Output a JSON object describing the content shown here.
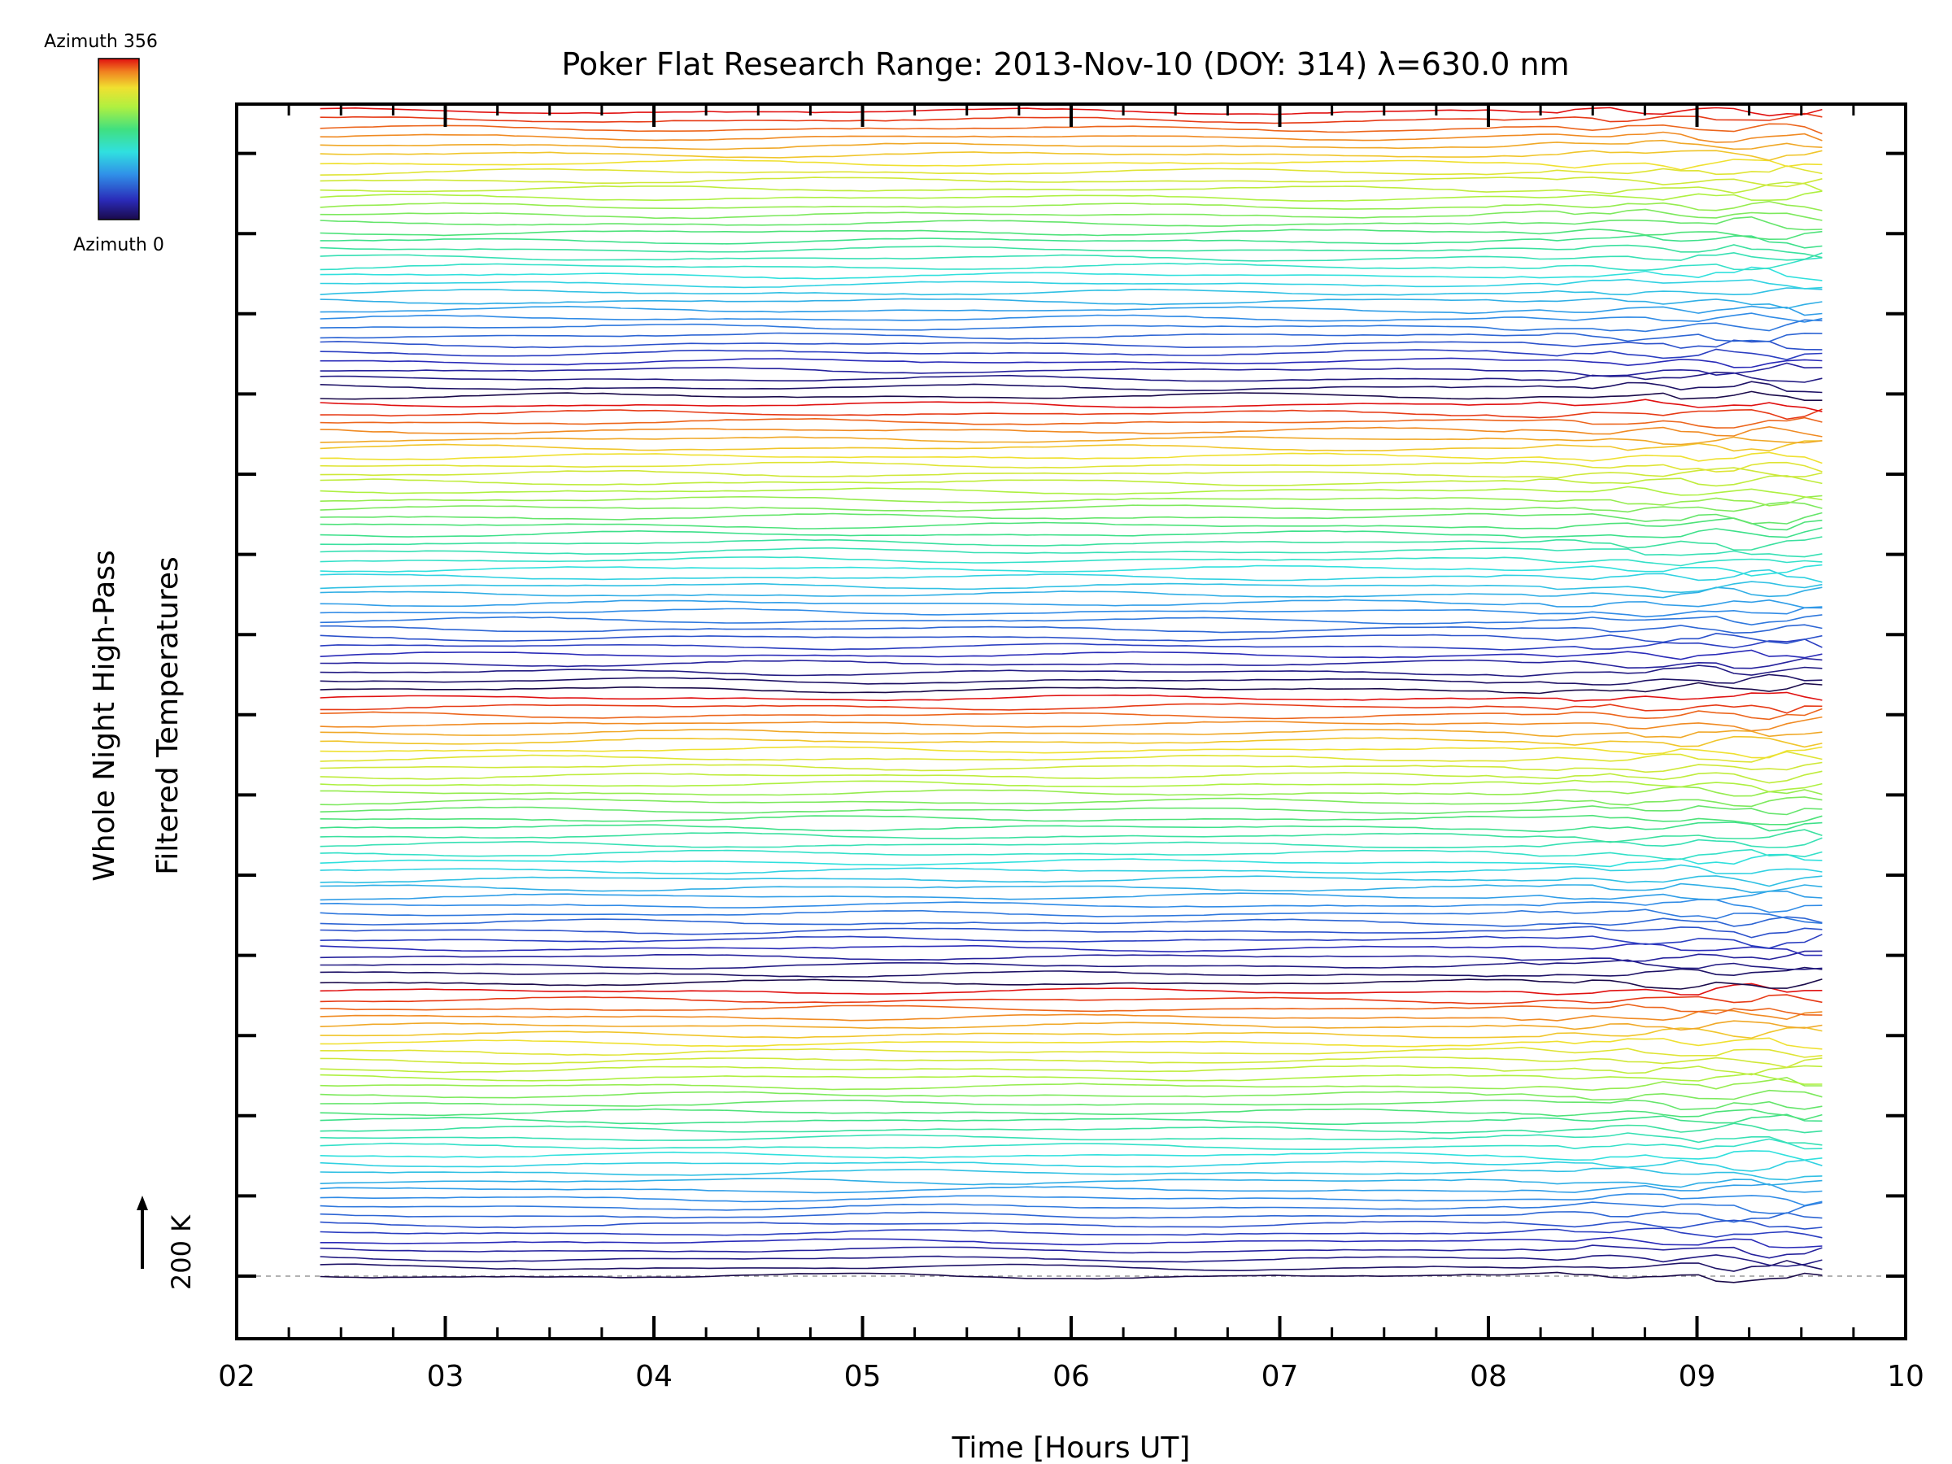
{
  "chart_data": {
    "type": "line",
    "title": "Poker Flat Research Range: 2013-Nov-10 (DOY: 314) λ=630.0 nm",
    "xlabel": "Time [Hours UT]",
    "ylabel_line1": "Whole Night High-Pass",
    "ylabel_line2": "Filtered Temperatures",
    "xlim": [
      2,
      10
    ],
    "xticks": [
      "02",
      "03",
      "04",
      "05",
      "06",
      "07",
      "08",
      "09",
      "10"
    ],
    "data_time_range": [
      2.4,
      9.6
    ],
    "scale_bar_label": "200 K",
    "scale_bar_value_K": 200,
    "colorbar": {
      "top_label": "Azimuth 356",
      "bottom_label": "Azimuth 0",
      "azimuth_range": [
        0,
        356
      ],
      "colormap": "rainbow"
    },
    "series_count": 136,
    "azimuth_cycle_length": 34,
    "grid": false,
    "legend": "colorbar top-left",
    "baseline_style": "dashed gray"
  }
}
